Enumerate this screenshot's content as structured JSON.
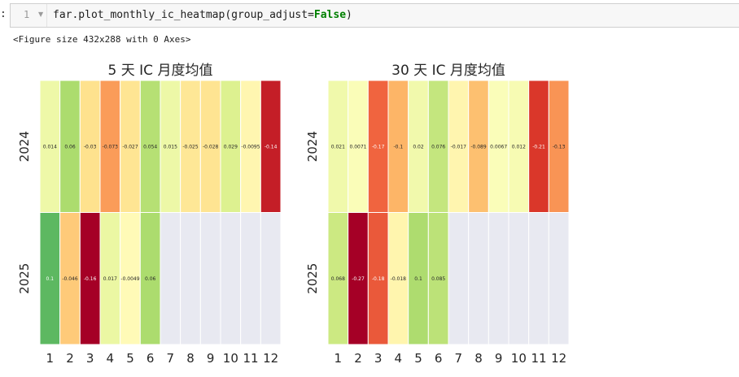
{
  "cell": {
    "prompt": ":",
    "line_number": "1",
    "code_prefix": "far.plot_monthly_ic_heatmap(group_adjust=",
    "code_keyword": "False",
    "code_suffix": ")",
    "output": "<Figure size 432x288 with 0 Axes>"
  },
  "colors": {
    "empty_cell": "#e8e9f1",
    "cell_border": "#ffffff",
    "scale": [
      "#a50026",
      "#d73027",
      "#f46d43",
      "#fdae61",
      "#fee08b",
      "#ffffbf",
      "#d9ef8b",
      "#a6d96a",
      "#66bd63",
      "#1a9850",
      "#006837"
    ]
  },
  "chart_data": [
    {
      "type": "heatmap",
      "title": "5 天 IC 月度均值",
      "years": [
        "2024",
        "2025"
      ],
      "months": [
        "1",
        "2",
        "3",
        "4",
        "5",
        "6",
        "7",
        "8",
        "9",
        "10",
        "11",
        "12"
      ],
      "color_range": [
        -0.16,
        0.16
      ],
      "values": [
        [
          0.014,
          0.06,
          -0.03,
          -0.073,
          -0.027,
          0.054,
          0.015,
          -0.025,
          -0.028,
          0.029,
          -0.0095,
          -0.14
        ],
        [
          0.1,
          -0.046,
          -0.16,
          0.017,
          -0.0049,
          0.06,
          null,
          null,
          null,
          null,
          null,
          null
        ]
      ],
      "labels": [
        [
          "0.014",
          "0.06",
          "-0.03",
          "-0.073",
          "-0.027",
          "0.054",
          "0.015",
          "-0.025",
          "-0.028",
          "0.029",
          "-0.0095",
          "-0.14"
        ],
        [
          "0.1",
          "-0.046",
          "-0.16",
          "0.017",
          "-0.0049",
          "0.06",
          "",
          "",
          "",
          "",
          "",
          ""
        ]
      ]
    },
    {
      "type": "heatmap",
      "title": "30 天 IC 月度均值",
      "years": [
        "2024",
        "2025"
      ],
      "months": [
        "1",
        "2",
        "3",
        "4",
        "5",
        "6",
        "7",
        "8",
        "9",
        "10",
        "11",
        "12"
      ],
      "color_range": [
        -0.27,
        0.27
      ],
      "values": [
        [
          0.021,
          0.0071,
          -0.17,
          -0.1,
          0.02,
          0.076,
          -0.017,
          -0.089,
          0.0067,
          0.012,
          -0.21,
          -0.13
        ],
        [
          0.068,
          -0.27,
          -0.18,
          -0.018,
          0.1,
          0.085,
          null,
          null,
          null,
          null,
          null,
          null
        ]
      ],
      "labels": [
        [
          "0.021",
          "0.0071",
          "-0.17",
          "-0.1",
          "0.02",
          "0.076",
          "-0.017",
          "-0.089",
          "0.0067",
          "0.012",
          "-0.21",
          "-0.13"
        ],
        [
          "0.068",
          "-0.27",
          "-0.18",
          "-0.018",
          "0.1",
          "0.085",
          "",
          "",
          "",
          "",
          "",
          ""
        ]
      ]
    }
  ]
}
